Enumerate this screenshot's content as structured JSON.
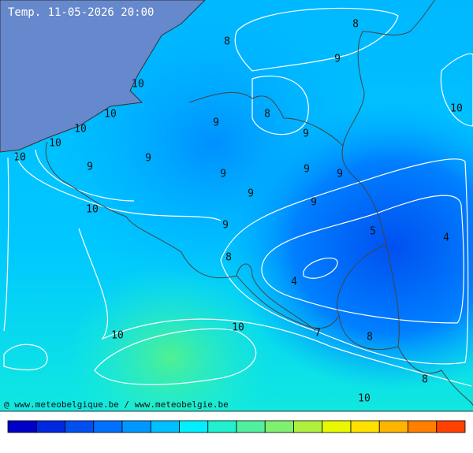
{
  "header": {
    "title": "Temp. 11-05-2026 20:00"
  },
  "labels": [
    8,
    8,
    9,
    10,
    10,
    10,
    8,
    9,
    10,
    9,
    10,
    10,
    9,
    9,
    9,
    9,
    9,
    9,
    9,
    10,
    9,
    5,
    4,
    8,
    4,
    10,
    7,
    10,
    8,
    8,
    10
  ],
  "footer": {
    "credit": "@ www.meteobelgique.be / www.meteobelgie.be"
  }
}
